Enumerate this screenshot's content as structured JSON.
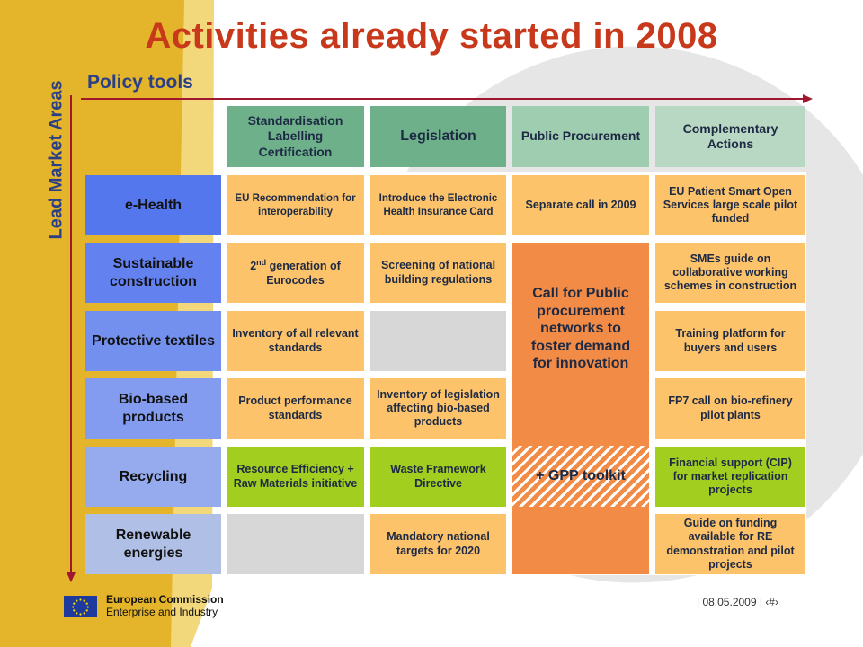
{
  "title": "Activities already started in 2008",
  "axis_x_label": "Policy tools",
  "axis_y_label": "Lead Market Areas",
  "columns": [
    "Standardisation Labelling Certification",
    "Legislation",
    "Public Procurement",
    "Complementary Actions"
  ],
  "rows": [
    "e-Health",
    "Sustainable construction",
    "Protective textiles",
    "Bio-based products",
    "Recycling",
    "Renewable energies"
  ],
  "cells": {
    "std_ehealth": "EU Recommendation for interoperability",
    "std_construction_pre": "2",
    "std_construction_sup": "nd",
    "std_construction_post": " generation of Eurocodes",
    "std_textiles": "Inventory of all relevant standards",
    "std_biobased": "Product performance standards",
    "std_recycling": "Resource Efficiency + Raw Materials initiative",
    "leg_ehealth": "Introduce the Electronic Health Insurance Card",
    "leg_construction": "Screening of national building regulations",
    "leg_biobased": "Inventory of legislation affecting bio-based products",
    "leg_recycling": "Waste Framework Directive",
    "leg_renewable": "Mandatory national targets for 2020",
    "pp_ehealth": "Separate call in 2009",
    "pp_big": "Call for Public procurement networks to foster demand for innovation",
    "pp_gpp": "+ GPP toolkit",
    "ca_ehealth": "EU Patient Smart Open Services large scale pilot funded",
    "ca_construction": "SMEs guide on collaborative working schemes in construction",
    "ca_textiles": "Training platform for buyers and users",
    "ca_biobased": "FP7 call on bio-refinery pilot plants",
    "ca_recycling": "Financial support (CIP) for market replication projects",
    "ca_renewable": "Guide on funding available for RE demonstration and pilot projects"
  },
  "footer": {
    "org": "European Commission",
    "dept": "Enterprise and Industry",
    "date": "| 08.05.2009 | ‹#›"
  },
  "colors": {
    "title": "#c8391b",
    "header_green": "#6db08a",
    "row_blue": "#6b87f0",
    "cell_orange": "#fcc36a",
    "cell_green": "#a2ce1f",
    "procurement": "#f28b45",
    "arrow": "#a01830"
  }
}
